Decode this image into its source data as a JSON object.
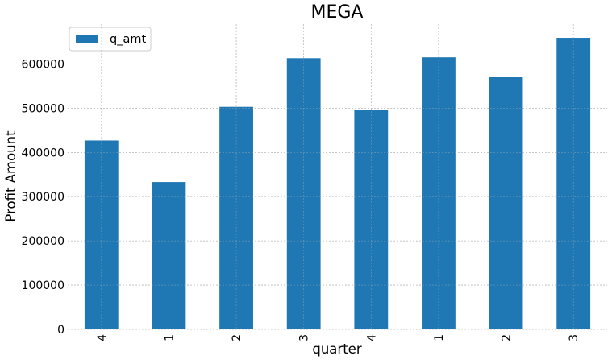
{
  "chart_data": {
    "type": "bar",
    "title": "MEGA",
    "xlabel": "quarter",
    "ylabel": "Profit Amount",
    "categories": [
      "4",
      "1",
      "2",
      "3",
      "4",
      "1",
      "2",
      "3"
    ],
    "series": [
      {
        "name": "q_amt",
        "values": [
          427000,
          333000,
          503000,
          613000,
          497000,
          615000,
          570000,
          659000
        ],
        "color": "#1f77b4"
      }
    ],
    "ylim": [
      0,
      690000
    ],
    "yticks": [
      0,
      100000,
      200000,
      300000,
      400000,
      500000,
      600000
    ],
    "ytick_labels": [
      "0",
      "100000",
      "200000",
      "300000",
      "400000",
      "500000",
      "600000"
    ],
    "grid": true,
    "legend_position": "top-left"
  }
}
